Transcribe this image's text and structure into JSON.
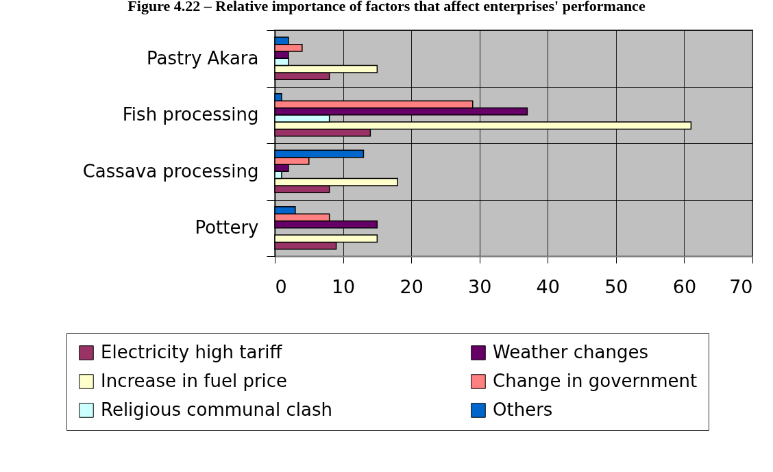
{
  "chart_data": {
    "type": "bar",
    "title": "Figure 4.22 – Relative importance of factors that affect enterprises' performance",
    "orientation": "horizontal",
    "categories": [
      "Pastry Akara",
      "Fish processing",
      "Cassava processing",
      "Pottery"
    ],
    "series": [
      {
        "name": "Electricity high tariff",
        "color": "#993366",
        "values": [
          8,
          14,
          8,
          9
        ]
      },
      {
        "name": "Increase in fuel price",
        "color": "#ffffcc",
        "values": [
          15,
          61,
          18,
          15
        ]
      },
      {
        "name": "Religious communal clash",
        "color": "#ccffff",
        "values": [
          2,
          8,
          1,
          null
        ]
      },
      {
        "name": "Weather changes",
        "color": "#660066",
        "values": [
          2,
          37,
          2,
          15
        ]
      },
      {
        "name": "Change in government",
        "color": "#ff8080",
        "values": [
          4,
          29,
          5,
          8
        ]
      },
      {
        "name": "Others",
        "color": "#0066cc",
        "values": [
          2,
          1,
          13,
          3
        ]
      }
    ],
    "xlim": [
      0,
      70
    ],
    "xticks": [
      0,
      10,
      20,
      30,
      40,
      50,
      60,
      70
    ],
    "grid": true,
    "legend": "bottom"
  }
}
